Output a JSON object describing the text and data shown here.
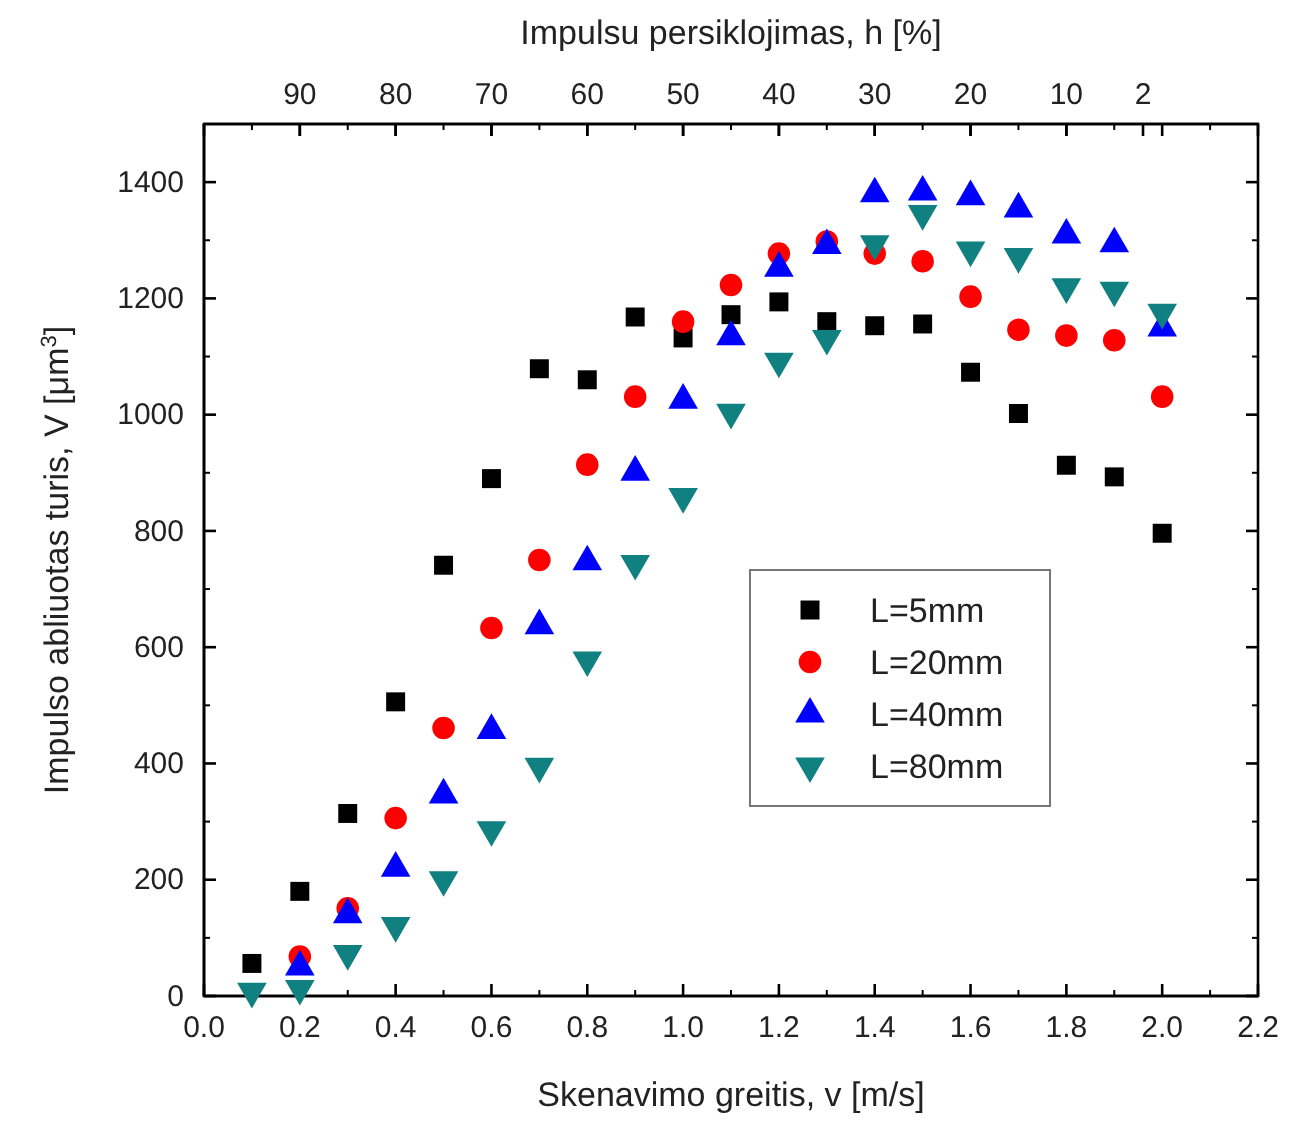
{
  "chart_data": {
    "type": "scatter",
    "xlabel": "Skenavimo greitis, v [m/s]",
    "ylabel": "Impulso abliuotas turis, V [μm$^{3}$]",
    "x2label": "Impulsu persiklojimas, h [%]",
    "x": [
      0.1,
      0.2,
      0.3,
      0.4,
      0.5,
      0.6,
      0.7,
      0.8,
      0.9,
      1.0,
      1.1,
      1.2,
      1.3,
      1.4,
      1.5,
      1.6,
      1.7,
      1.8,
      1.9,
      2.0
    ],
    "series": [
      {
        "name": "L=5mm",
        "color": "#000000",
        "marker": "square",
        "values": [
          56,
          180,
          314,
          506,
          741,
          890,
          1079,
          1060,
          1168,
          1132,
          1172,
          1194,
          1160,
          1153,
          1156,
          1073,
          1002,
          913,
          893,
          796
        ]
      },
      {
        "name": "L=20mm",
        "color": "#ff0000",
        "marker": "circle",
        "values": [
          null,
          68,
          151,
          306,
          461,
          633,
          750,
          914,
          1031,
          1160,
          1223,
          1277,
          1298,
          1277,
          1264,
          1203,
          1146,
          1136,
          1128,
          1031
        ]
      },
      {
        "name": "L=40mm",
        "color": "#0000ff",
        "marker": "triangle",
        "values": [
          null,
          50,
          140,
          220,
          346,
          457,
          637,
          747,
          901,
          1025,
          1134,
          1252,
          1291,
          1380,
          1383,
          1375,
          1354,
          1309,
          1294,
          1149
        ]
      },
      {
        "name": "L=80mm",
        "color": "#108080",
        "marker": "triangle-down",
        "values": [
          8,
          13,
          73,
          121,
          200,
          286,
          395,
          578,
          744,
          859,
          1004,
          1092,
          1131,
          1294,
          1346,
          1283,
          1272,
          1220,
          1214,
          1176
        ]
      }
    ],
    "xlim": [
      0,
      2.2
    ],
    "xticks": [
      {
        "value": 0,
        "label": "0.0"
      },
      0.2,
      0.4,
      0.6,
      0.8,
      {
        "value": 1,
        "label": "1.0"
      },
      1.2,
      1.4,
      1.6,
      1.8,
      {
        "value": 2,
        "label": "2.0"
      },
      2.2
    ],
    "ylim": [
      0,
      1500
    ],
    "yticks": [
      0,
      200,
      400,
      600,
      800,
      1000,
      1200,
      1400
    ],
    "x2lim": [
      100,
      -10
    ],
    "x2ticks": [
      90,
      80,
      70,
      60,
      50,
      40,
      30,
      20,
      10,
      2
    ],
    "grid": false,
    "legend": "right"
  }
}
